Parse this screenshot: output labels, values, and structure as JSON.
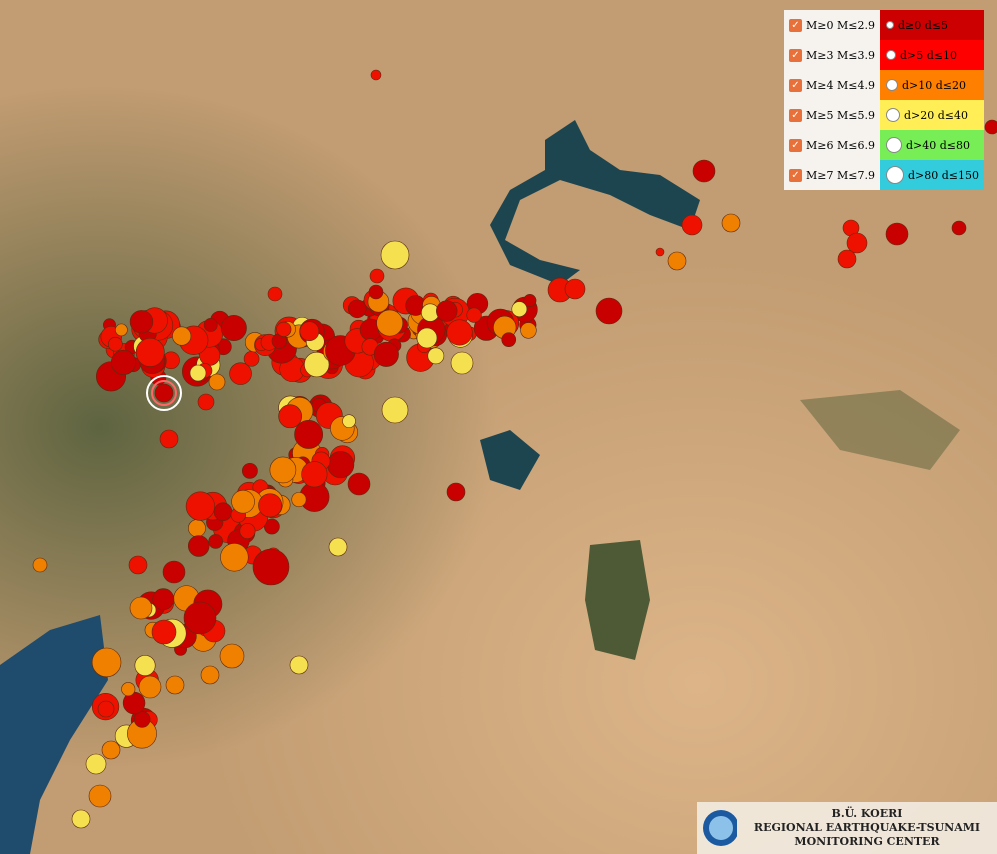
{
  "legend": {
    "magnitude": [
      {
        "label": "M≥0  M≤2.9",
        "checked": true
      },
      {
        "label": "M≥3  M≤3.9",
        "checked": true
      },
      {
        "label": "M≥4  M≤4.9",
        "checked": true
      },
      {
        "label": "M≥5  M≤5.9",
        "checked": true
      },
      {
        "label": "M≥6  M≤6.9",
        "checked": true
      },
      {
        "label": "M≥7  M≤7.9",
        "checked": true
      }
    ],
    "depth": [
      {
        "label": "d≥0   d≤5",
        "color": "#cc0000"
      },
      {
        "label": "d>5   d≤10",
        "color": "#ff0000"
      },
      {
        "label": "d>10  d≤20",
        "color": "#ff8000"
      },
      {
        "label": "d>20  d≤40",
        "color": "#ffee55"
      },
      {
        "label": "d>40  d≤80",
        "color": "#77ee55"
      },
      {
        "label": "d>80  d≤150",
        "color": "#33ccdd"
      }
    ]
  },
  "footer": {
    "line1": "B.Ü. KOERI",
    "line2": "REGIONAL EARTHQUAKE-TSUNAMI",
    "line3": "MONITORING CENTER"
  }
}
